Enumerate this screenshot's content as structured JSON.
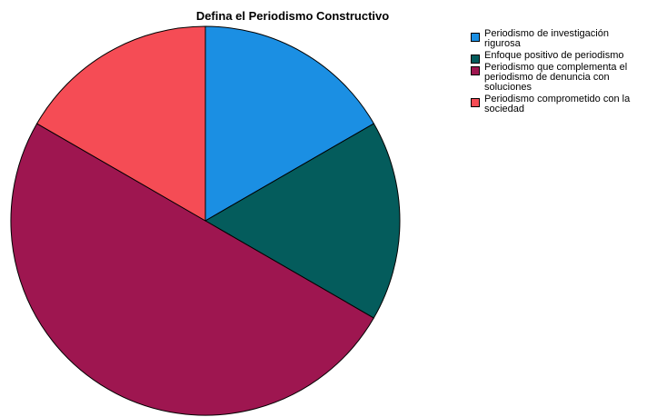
{
  "chart_data": {
    "type": "pie",
    "title": "Defina el Periodismo Constructivo",
    "categories": [
      "Periodismo de investigación rigurosa",
      "Enfoque positivo de periodismo",
      "Periodismo que complementa el periodismo de denuncia con soluciones",
      "Periodismo comprometido con la sociedad"
    ],
    "values": [
      16.67,
      16.67,
      50.0,
      16.67
    ],
    "colors": [
      "#1b8fe3",
      "#045c5c",
      "#9e1650",
      "#f54c55"
    ],
    "start_angle": "12 o'clock",
    "direction": "clockwise",
    "legend_position": "right"
  }
}
